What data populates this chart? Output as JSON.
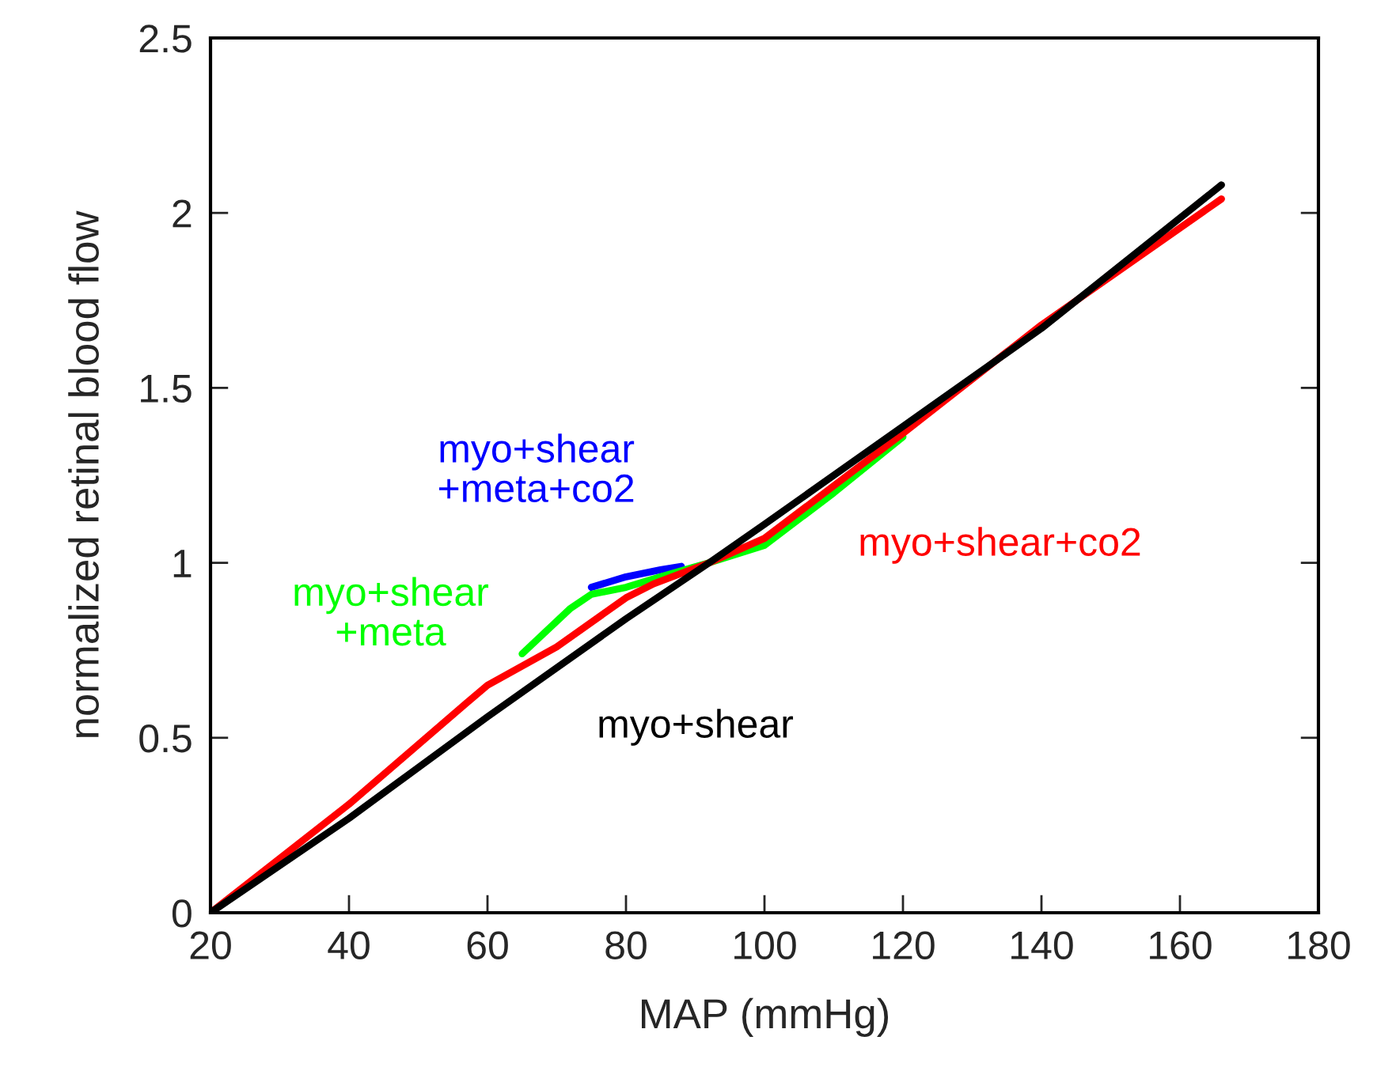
{
  "chart_data": {
    "type": "line",
    "xlabel": "MAP (mmHg)",
    "ylabel": "normalized retinal blood flow",
    "xlim": [
      20,
      180
    ],
    "ylim": [
      0,
      2.5
    ],
    "xticks": [
      20,
      40,
      60,
      80,
      100,
      120,
      140,
      160,
      180
    ],
    "yticks": [
      0,
      0.5,
      1,
      1.5,
      2,
      2.5
    ],
    "grid": false,
    "legend": false,
    "marker": "none",
    "line_style": "solid",
    "series": [
      {
        "name": "myo+shear\n+meta+co2",
        "color": "#0000ff",
        "x": [
          75,
          80,
          85,
          88
        ],
        "values": [
          0.93,
          0.96,
          0.98,
          0.99
        ]
      },
      {
        "name": "myo+shear\n+meta",
        "color": "#00ff00",
        "x": [
          65,
          72,
          75,
          80,
          85,
          92,
          100,
          110,
          120
        ],
        "values": [
          0.74,
          0.87,
          0.91,
          0.93,
          0.96,
          1.0,
          1.05,
          1.2,
          1.36
        ]
      },
      {
        "name": "myo+shear+co2",
        "color": "#ff0000",
        "x": [
          20,
          40,
          57,
          60,
          70,
          80,
          84,
          92,
          100,
          110,
          120,
          140,
          166
        ],
        "values": [
          0,
          0.31,
          0.6,
          0.65,
          0.76,
          0.9,
          0.94,
          1.0,
          1.07,
          1.22,
          1.37,
          1.68,
          2.04
        ]
      },
      {
        "name": "myo+shear",
        "color": "#000000",
        "x": [
          20,
          40,
          60,
          80,
          92,
          100,
          120,
          140,
          166
        ],
        "values": [
          0,
          0.27,
          0.56,
          0.84,
          1.0,
          1.11,
          1.39,
          1.67,
          2.08
        ]
      }
    ]
  }
}
